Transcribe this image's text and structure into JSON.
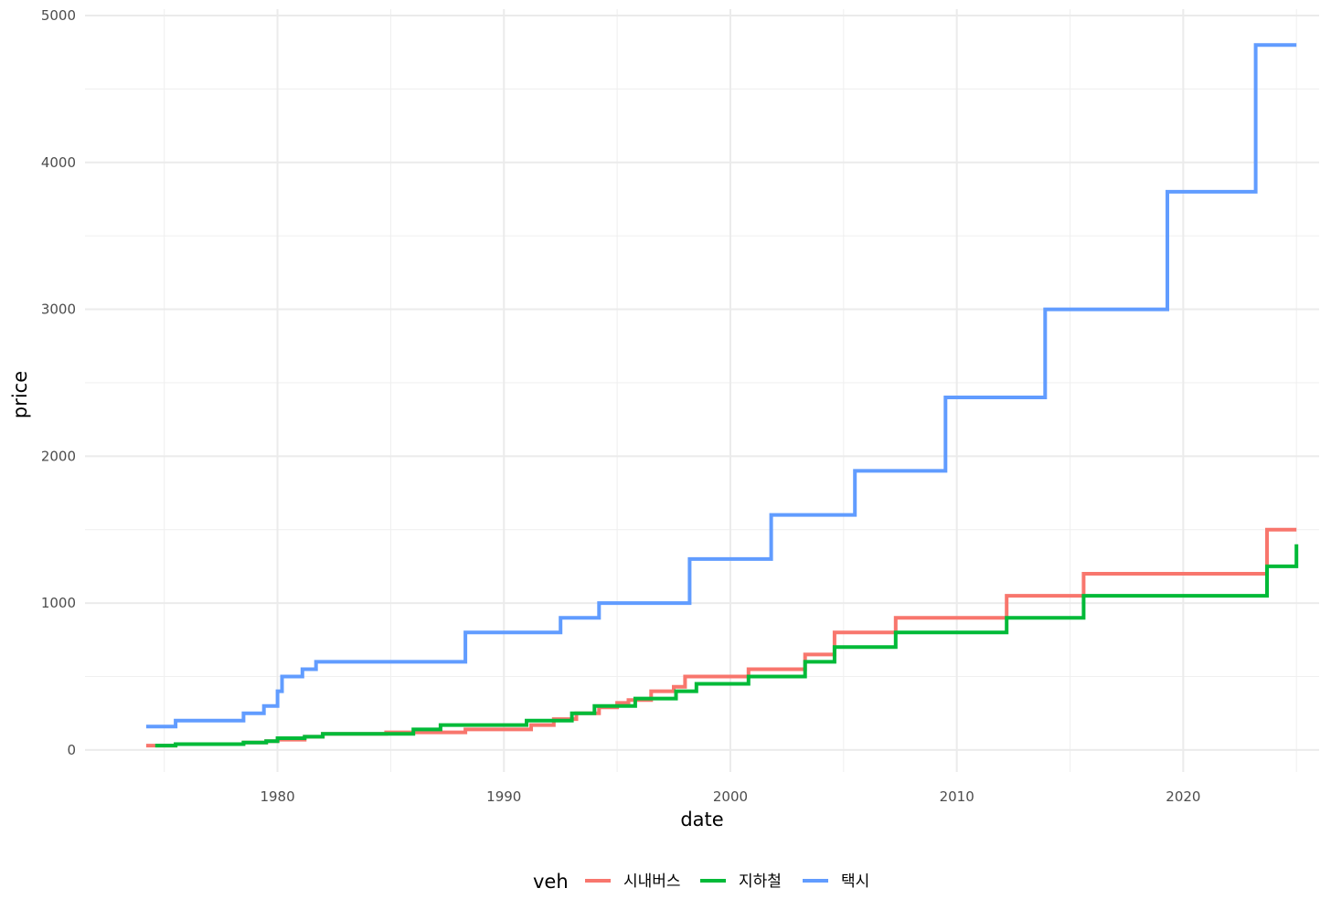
{
  "chart_data": {
    "type": "line",
    "step": true,
    "xlabel": "date",
    "ylabel": "price",
    "xlim": [
      1971.5,
      2026.0
    ],
    "ylim": [
      -150,
      5000
    ],
    "x_ticks": [
      1980,
      1990,
      2000,
      2010,
      2020
    ],
    "x_tick_labels": [
      "1980",
      "1990",
      "2000",
      "2010",
      "2020"
    ],
    "y_ticks": [
      0,
      1000,
      2000,
      3000,
      4000,
      5000
    ],
    "y_tick_labels": [
      "0",
      "1000",
      "2000",
      "3000",
      "4000",
      "5000"
    ],
    "grid": true,
    "legend": {
      "title": "veh",
      "position": "bottom"
    },
    "series": [
      {
        "name": "시내버스",
        "color": "#F8766D",
        "x": [
          1974.2,
          1975.5,
          1978.5,
          1979.5,
          1980.0,
          1981.2,
          1982.0,
          1984.8,
          1988.3,
          1991.2,
          1992.2,
          1993.2,
          1994.2,
          1995.0,
          1995.5,
          1996.5,
          1997.5,
          1998.0,
          2000.8,
          2003.3,
          2004.6,
          2007.3,
          2012.2,
          2015.6,
          2023.7,
          2025.0
        ],
        "y": [
          30,
          40,
          50,
          60,
          70,
          90,
          110,
          120,
          140,
          170,
          210,
          250,
          290,
          320,
          340,
          400,
          430,
          500,
          550,
          650,
          800,
          900,
          1050,
          1200,
          1500,
          1500
        ]
      },
      {
        "name": "지하철",
        "color": "#00BA38",
        "x": [
          1974.6,
          1975.5,
          1978.5,
          1979.5,
          1980.0,
          1981.2,
          1982.0,
          1984.8,
          1986.0,
          1987.2,
          1991.0,
          1993.0,
          1994.0,
          1995.8,
          1997.6,
          1998.5,
          2000.8,
          2003.3,
          2004.6,
          2007.3,
          2012.2,
          2015.6,
          2023.7,
          2025.0
        ],
        "y": [
          30,
          40,
          50,
          60,
          80,
          90,
          110,
          110,
          140,
          170,
          200,
          250,
          300,
          350,
          400,
          450,
          500,
          600,
          700,
          800,
          900,
          1050,
          1250,
          1400
        ]
      },
      {
        "name": "택시",
        "color": "#619CFF",
        "x": [
          1974.2,
          1975.5,
          1978.5,
          1979.4,
          1980.0,
          1980.2,
          1981.1,
          1981.7,
          1988.3,
          1992.5,
          1994.2,
          1998.2,
          2001.8,
          2005.5,
          2009.5,
          2013.9,
          2019.3,
          2023.2,
          2025.0
        ],
        "y": [
          160,
          200,
          250,
          300,
          400,
          500,
          550,
          600,
          800,
          900,
          1000,
          1300,
          1600,
          1900,
          2400,
          3000,
          3800,
          4800,
          4800
        ]
      }
    ]
  }
}
